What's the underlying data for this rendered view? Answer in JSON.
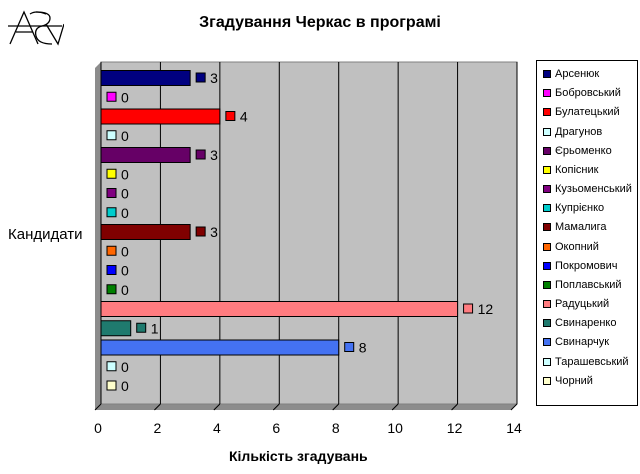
{
  "chart_data": {
    "type": "bar",
    "orientation": "horizontal",
    "title": "Згадування Черкас в програмі",
    "xlabel": "Кількість згадувань",
    "ylabel": "Кандидати",
    "xlim": [
      0,
      14
    ],
    "xticks": [
      "0",
      "2",
      "4",
      "6",
      "8",
      "10",
      "12",
      "14"
    ],
    "grid": true,
    "legend_position": "right",
    "plot_background": "#c0c0c0",
    "series": [
      {
        "name": "Арсенюк",
        "value": 3,
        "color": "#000080"
      },
      {
        "name": "Бобровський",
        "value": 0,
        "color": "#ff00ff"
      },
      {
        "name": "Булатецький",
        "value": 4,
        "color": "#ff0000"
      },
      {
        "name": "Драгунов",
        "value": 0,
        "color": "#ccffff"
      },
      {
        "name": "Єрьоменко",
        "value": 3,
        "color": "#660066"
      },
      {
        "name": "Копісник",
        "value": 0,
        "color": "#ffff00"
      },
      {
        "name": "Кузьоменський",
        "value": 0,
        "color": "#800080"
      },
      {
        "name": "Купрієнко",
        "value": 0,
        "color": "#00cccc"
      },
      {
        "name": "Мамалига",
        "value": 3,
        "color": "#800000"
      },
      {
        "name": "Окопний",
        "value": 0,
        "color": "#ff6600"
      },
      {
        "name": "Покромович",
        "value": 0,
        "color": "#0000ff"
      },
      {
        "name": "Поплавський",
        "value": 0,
        "color": "#008000"
      },
      {
        "name": "Радуцький",
        "value": 12,
        "color": "#ff7c80"
      },
      {
        "name": "Свинаренко",
        "value": 1,
        "color": "#1f7a6e"
      },
      {
        "name": "Свинарчук",
        "value": 8,
        "color": "#4472f2"
      },
      {
        "name": "Тарашевський",
        "value": 0,
        "color": "#ccffff"
      },
      {
        "name": "Чорний",
        "value": 0,
        "color": "#ffffcc"
      }
    ]
  }
}
